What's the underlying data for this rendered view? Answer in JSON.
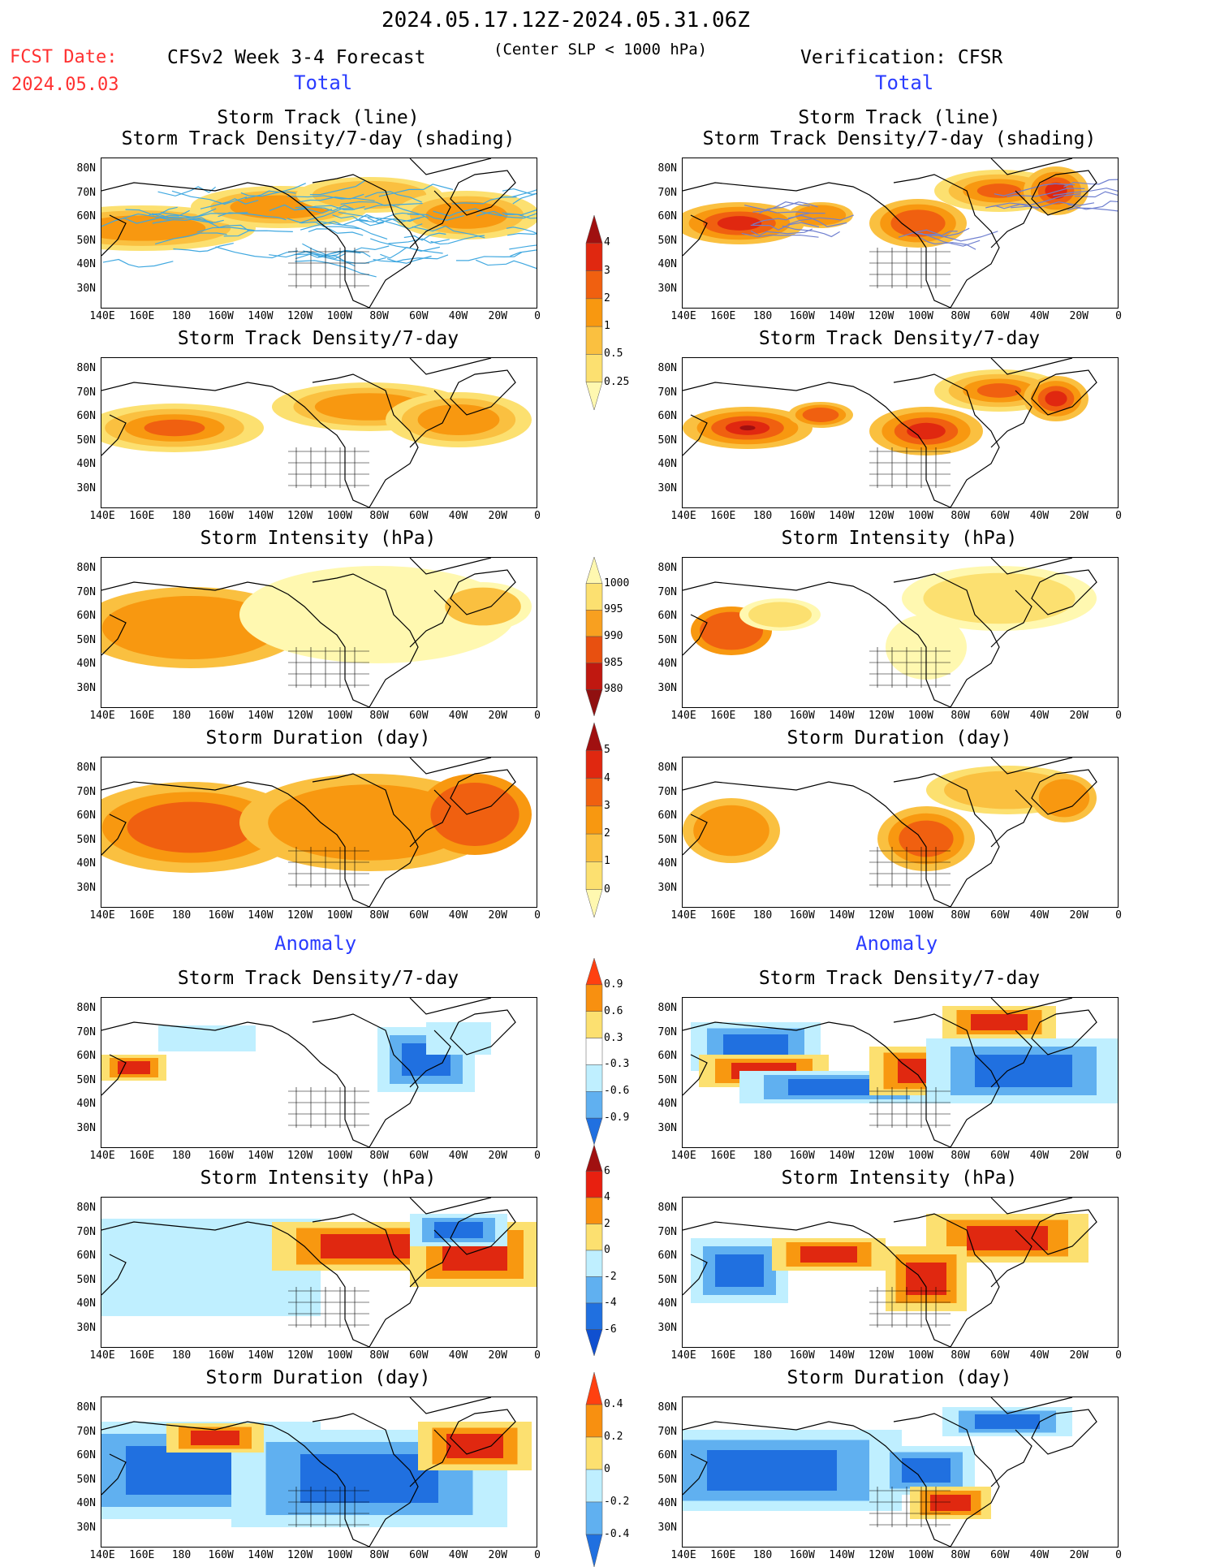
{
  "header": {
    "period": "2024.05.17.12Z-2024.05.31.06Z",
    "fcst_label": "FCST Date:",
    "fcst_date": "2024.05.03",
    "left_title": "CFSv2 Week 3-4 Forecast",
    "slp_note": "(Center SLP < 1000 hPa)",
    "right_title": "Verification: CFSR"
  },
  "sections": {
    "total": "Total",
    "anomaly": "Anomaly"
  },
  "panel_titles": {
    "track_line": "Storm Track (line)",
    "track_shading": "Storm Track Density/7-day (shading)",
    "density": "Storm Track Density/7-day",
    "intensity": "Storm Intensity (hPa)",
    "duration": "Storm Duration (day)"
  },
  "axes": {
    "lat_labels": [
      "80N",
      "70N",
      "60N",
      "50N",
      "40N",
      "30N"
    ],
    "lon_labels": [
      "140E",
      "160E",
      "180",
      "160W",
      "140W",
      "120W",
      "100W",
      "80W",
      "60W",
      "40W",
      "20W",
      "0"
    ],
    "lon_labels_right": [
      "140E",
      "160E",
      "180",
      "160W",
      "140W",
      "120W",
      "100W",
      "80W",
      "60W",
      "40W",
      "20W",
      "0"
    ]
  },
  "colorbars": {
    "density_total": {
      "labels": [
        "4",
        "3",
        "2",
        "1",
        "0.5",
        "0.25"
      ],
      "colors": [
        "#a01010",
        "#e02810",
        "#f06010",
        "#f89810",
        "#fac040",
        "#fce070",
        "#fff8b0"
      ]
    },
    "intensity_total": {
      "labels": [
        "1000",
        "995",
        "990",
        "985",
        "980"
      ],
      "colors": [
        "#fff8b0",
        "#fce070",
        "#f8a020",
        "#e85010",
        "#c01810",
        "#901010"
      ]
    },
    "duration_total": {
      "labels": [
        "5",
        "4",
        "3",
        "2",
        "1",
        "0"
      ],
      "colors": [
        "#a01010",
        "#e02810",
        "#f06010",
        "#f89810",
        "#fac040",
        "#fce070",
        "#fff8b0"
      ]
    },
    "density_anom": {
      "labels": [
        "0.9",
        "0.6",
        "0.3",
        "-0.3",
        "-0.6",
        "-0.9"
      ],
      "colors": [
        "#ff4010",
        "#f89010",
        "#fce070",
        "#ffffff",
        "#bfefff",
        "#60b0f0",
        "#2070e0"
      ]
    },
    "intensity_anom": {
      "labels": [
        "6",
        "4",
        "2",
        "0",
        "-2",
        "-4",
        "-6"
      ],
      "colors": [
        "#a01010",
        "#e82010",
        "#f89010",
        "#fce070",
        "#bfefff",
        "#60b0f0",
        "#2070e0",
        "#1050d0"
      ]
    },
    "duration_anom": {
      "labels": [
        "0.4",
        "0.2",
        "0",
        "-0.2",
        "-0.4"
      ],
      "colors": [
        "#ff4010",
        "#f89010",
        "#fce070",
        "#bfefff",
        "#60b0f0",
        "#2070e0"
      ]
    }
  },
  "palette": {
    "warm": [
      "#fff8b0",
      "#fce070",
      "#fac040",
      "#f89810",
      "#f06010",
      "#e02810",
      "#a01010"
    ],
    "cool": [
      "#bfefff",
      "#60b0f0",
      "#2070e0"
    ],
    "track_line": "#40a8e0"
  }
}
